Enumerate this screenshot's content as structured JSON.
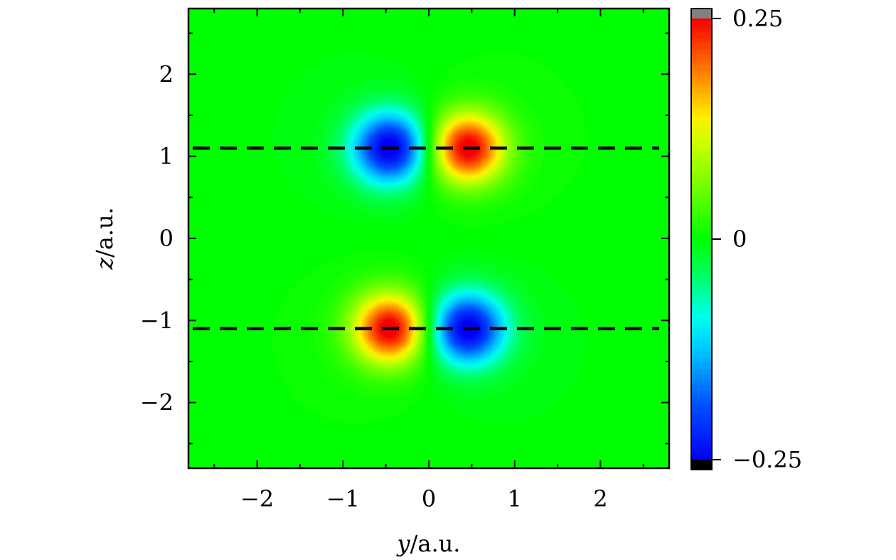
{
  "chart_data": {
    "type": "heatmap",
    "title": "",
    "xlabel_var": "y",
    "xlabel_unit": "/a.u.",
    "ylabel_var": "z",
    "ylabel_unit": "/a.u.",
    "xlim": [
      -2.8,
      2.8
    ],
    "ylim": [
      -2.8,
      2.8
    ],
    "xticks": [
      -2,
      -1,
      0,
      1,
      2
    ],
    "yticks": [
      -2,
      -1,
      0,
      1,
      2
    ],
    "xtick_labels": [
      "−2",
      "−1",
      "0",
      "1",
      "2"
    ],
    "ytick_labels": [
      "−2",
      "−1",
      "0",
      "1",
      "2"
    ],
    "dipoles": [
      {
        "y": -0.45,
        "z": 1.1,
        "sign": -1
      },
      {
        "y": 0.45,
        "z": 1.1,
        "sign": 1
      },
      {
        "y": -0.45,
        "z": -1.1,
        "sign": 1
      },
      {
        "y": 0.45,
        "z": -1.1,
        "sign": -1
      }
    ],
    "dashed_lines_z": [
      1.1,
      -1.1
    ],
    "colorbar": {
      "range": [
        -0.25,
        0.25
      ],
      "ticks": [
        0.25,
        0,
        -0.25
      ],
      "tick_labels": [
        "0.25",
        "0",
        "−0.25"
      ],
      "over_color": "#808080",
      "under_color": "#000000"
    }
  }
}
